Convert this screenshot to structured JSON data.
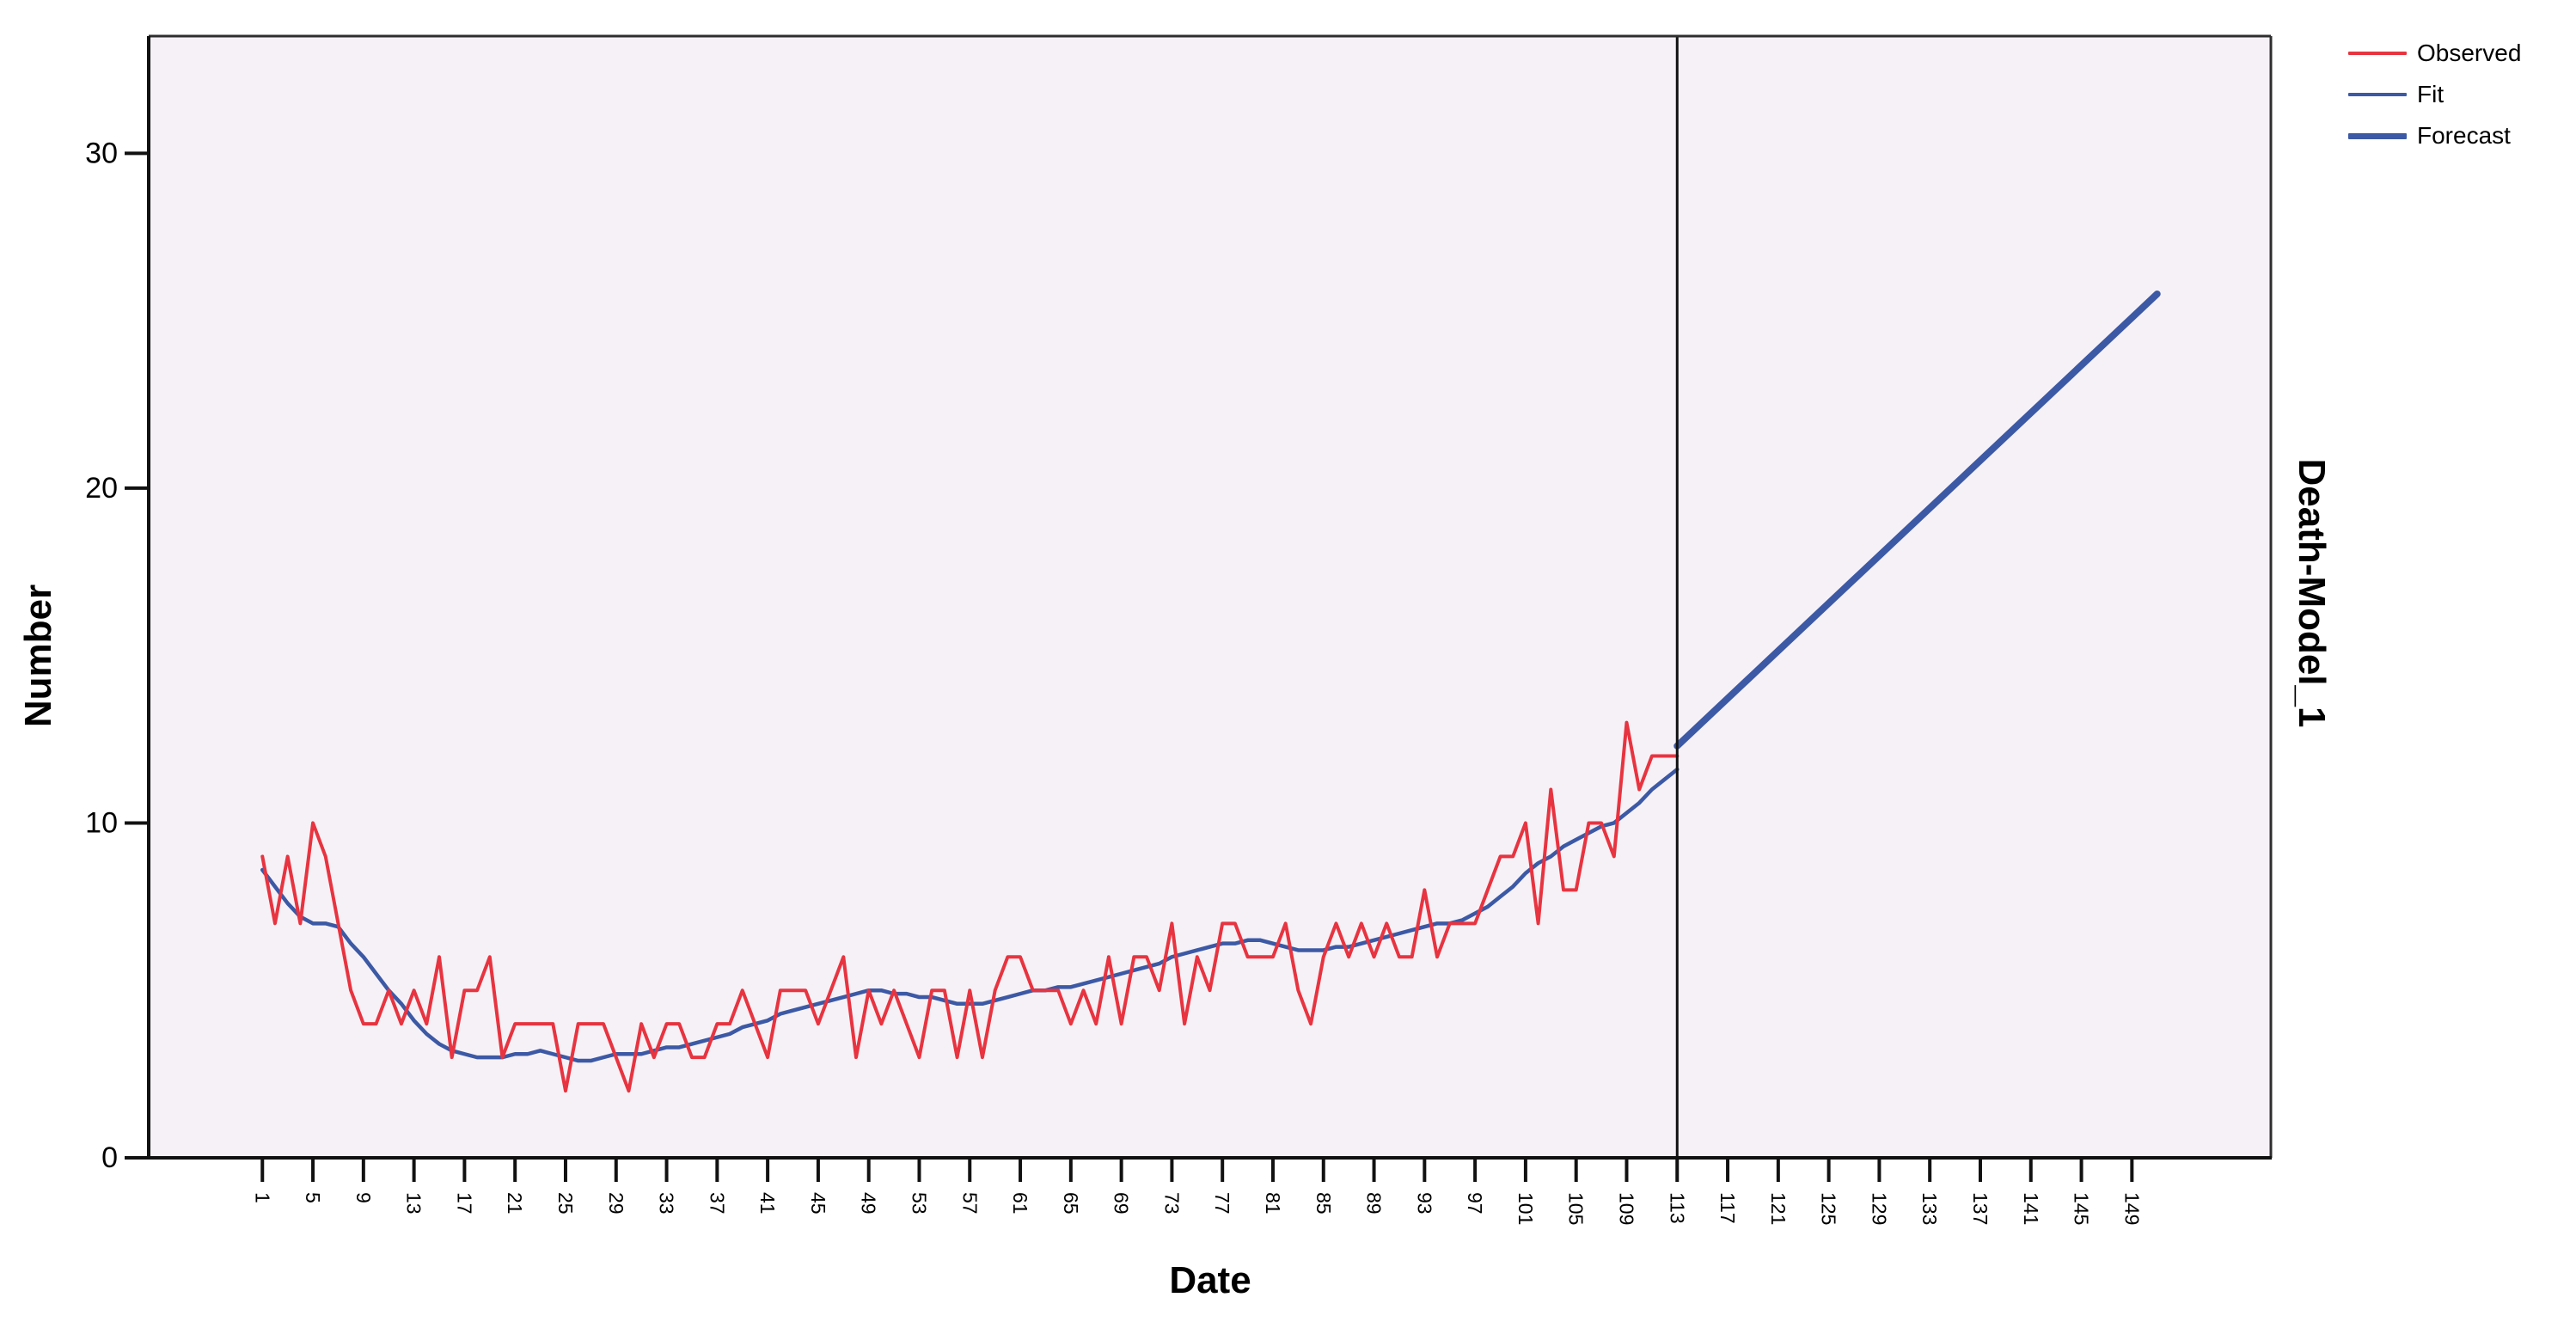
{
  "figure": {
    "background": "#ffffff",
    "plot_background": "#f6f1f6",
    "frame_color": "#2e2e2e",
    "axis_color": "#111111",
    "separator_color": "#111111",
    "text_color": "#000000"
  },
  "title_labels": {
    "y_axis": "Number",
    "x_axis": "Date",
    "model": "Death-Model_1"
  },
  "legend": {
    "items": [
      {
        "label": "Observed",
        "color": "#e73440",
        "thickness": 4
      },
      {
        "label": "Fit",
        "color": "#3c59a5",
        "thickness": 4
      },
      {
        "label": "Forecast",
        "color": "#3c59a5",
        "thickness": 7
      }
    ]
  },
  "chart_data": {
    "type": "line",
    "title": "",
    "xlabel": "Date",
    "ylabel": "Number",
    "legend_position": "top-right-outside",
    "grid": false,
    "xlim": [
      -8,
      160
    ],
    "ylim": [
      0,
      33.5
    ],
    "x_ticks": [
      1,
      5,
      9,
      13,
      17,
      21,
      25,
      29,
      33,
      37,
      41,
      45,
      49,
      53,
      57,
      61,
      65,
      69,
      73,
      77,
      81,
      85,
      89,
      93,
      97,
      101,
      105,
      109,
      113,
      117,
      121,
      125,
      129,
      133,
      137,
      141,
      145,
      149
    ],
    "y_ticks": [
      0,
      10,
      20,
      30
    ],
    "separator_x": 113,
    "series": [
      {
        "name": "Observed",
        "color": "#e73440",
        "width": 4,
        "x_start": 1,
        "values": [
          9,
          7,
          9,
          7,
          10,
          9,
          7,
          5,
          4,
          4,
          5,
          4,
          5,
          4,
          6,
          3,
          5,
          5,
          6,
          3,
          4,
          4,
          4,
          4,
          2,
          4,
          4,
          4,
          3,
          2,
          4,
          3,
          4,
          4,
          3,
          3,
          4,
          4,
          5,
          4,
          3,
          5,
          5,
          5,
          4,
          5,
          6,
          3,
          5,
          4,
          5,
          4,
          3,
          5,
          5,
          3,
          5,
          3,
          5,
          6,
          6,
          5,
          5,
          5,
          4,
          5,
          4,
          6,
          4,
          6,
          6,
          5,
          7,
          4,
          6,
          5,
          7,
          7,
          6,
          6,
          6,
          7,
          5,
          4,
          6,
          7,
          6,
          7,
          6,
          7,
          6,
          6,
          8,
          6,
          7,
          7,
          7,
          8,
          9,
          9,
          10,
          7,
          11,
          8,
          8,
          10,
          10,
          9,
          13,
          11,
          12,
          12,
          12
        ]
      },
      {
        "name": "Fit",
        "color": "#3c59a5",
        "width": 4.5,
        "x_start": 1,
        "values": [
          8.6,
          8.1,
          7.6,
          7.2,
          7.0,
          7.0,
          6.9,
          6.4,
          6.0,
          5.5,
          5.0,
          4.6,
          4.1,
          3.7,
          3.4,
          3.2,
          3.1,
          3.0,
          3.0,
          3.0,
          3.1,
          3.1,
          3.2,
          3.1,
          3.0,
          2.9,
          2.9,
          3.0,
          3.1,
          3.1,
          3.1,
          3.2,
          3.3,
          3.3,
          3.4,
          3.5,
          3.6,
          3.7,
          3.9,
          4.0,
          4.1,
          4.3,
          4.4,
          4.5,
          4.6,
          4.7,
          4.8,
          4.9,
          5.0,
          5.0,
          4.9,
          4.9,
          4.8,
          4.8,
          4.7,
          4.6,
          4.6,
          4.6,
          4.7,
          4.8,
          4.9,
          5.0,
          5.0,
          5.1,
          5.1,
          5.2,
          5.3,
          5.4,
          5.5,
          5.6,
          5.7,
          5.8,
          6.0,
          6.1,
          6.2,
          6.3,
          6.4,
          6.4,
          6.5,
          6.5,
          6.4,
          6.3,
          6.2,
          6.2,
          6.2,
          6.3,
          6.3,
          6.4,
          6.5,
          6.6,
          6.7,
          6.8,
          6.9,
          7.0,
          7.0,
          7.1,
          7.3,
          7.5,
          7.8,
          8.1,
          8.5,
          8.8,
          9.0,
          9.3,
          9.5,
          9.7,
          9.9,
          10.0,
          10.3,
          10.6,
          11.0,
          11.3,
          11.6
        ]
      },
      {
        "name": "Forecast",
        "color": "#3c59a5",
        "width": 8,
        "x": [
          113,
          151
        ],
        "values": [
          12.3,
          25.8
        ]
      }
    ]
  }
}
